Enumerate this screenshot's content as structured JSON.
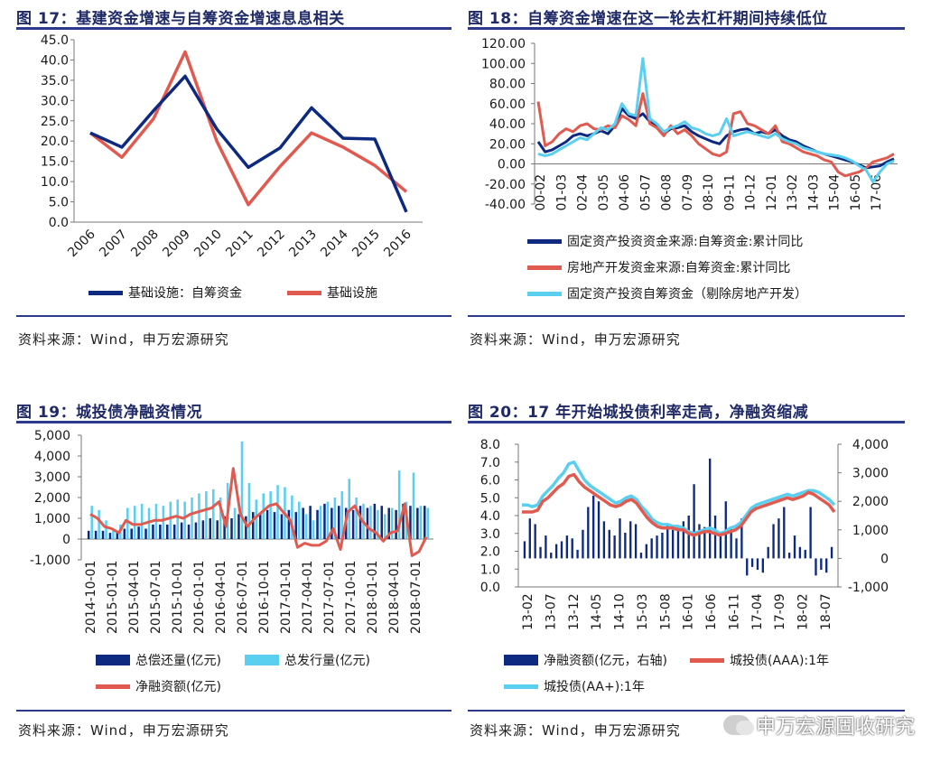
{
  "panels": {
    "p17": {
      "title": "图 17：基建资金增速与自筹资金增速息息相关",
      "source": "资料来源：Wind，申万宏源研究",
      "legend": [
        "基础设施：自筹资金",
        "基础设施"
      ]
    },
    "p18": {
      "title": "图 18：自筹资金增速在这一轮去杠杆期间持续低位",
      "source": "资料来源：Wind，申万宏源研究",
      "legend": [
        "固定资产投资资金来源:自筹资金:累计同比",
        "房地产开发资金来源:自筹资金:累计同比",
        "固定资产投资自筹资金（剔除房地产开发）"
      ]
    },
    "p19": {
      "title": "图 19：城投债净融资情况",
      "source": "资料来源：Wind，申万宏源研究",
      "legend": [
        "总偿还量(亿元)",
        "总发行量(亿元)",
        "净融资额(亿元)"
      ]
    },
    "p20": {
      "title": "图 20：17 年开始城投债利率走高，净融资缩减",
      "source": "资料来源：Wind，申万宏源研究",
      "legend": [
        "净融资额(亿元，右轴)",
        "城投债(AAA):1年",
        "城投债(AA+):1年"
      ]
    }
  },
  "watermark": "申万宏源固收研究",
  "colors": {
    "navy": "#0d2a80",
    "red": "#e05a50",
    "cyan": "#5bcff0",
    "rule": "#2b3a8c"
  },
  "chart_data": [
    {
      "id": "fig17",
      "type": "line",
      "title": "图 17：基建资金增速与自筹资金增速息息相关",
      "categories": [
        "2006",
        "2007",
        "2008",
        "2009",
        "2010",
        "2011",
        "2012",
        "2013",
        "2014",
        "2015",
        "2016"
      ],
      "ylim": [
        0,
        45
      ],
      "yticks": [
        "0.0",
        "5.0",
        "10.0",
        "15.0",
        "20.0",
        "25.0",
        "30.0",
        "35.0",
        "40.0",
        "45.0"
      ],
      "legend_position": "bottom",
      "series": [
        {
          "name": "基础设施：自筹资金",
          "color": "#0d2a80",
          "values": [
            22.0,
            18.5,
            27.5,
            36.0,
            23.0,
            13.5,
            18.3,
            28.2,
            20.7,
            20.5,
            2.5
          ]
        },
        {
          "name": "基础设施",
          "color": "#e05a50",
          "values": [
            22.0,
            16.0,
            25.5,
            42.0,
            20.0,
            4.3,
            13.7,
            22.0,
            18.5,
            14.0,
            7.5
          ]
        }
      ]
    },
    {
      "id": "fig18",
      "type": "line",
      "title": "图 18：自筹资金增速在这一轮去杠杆期间持续低位",
      "x_ticks": [
        "00-02",
        "01-03",
        "02-04",
        "03-05",
        "04-06",
        "05-07",
        "06-08",
        "07-09",
        "08-10",
        "09-11",
        "10-12",
        "12-01",
        "13-02",
        "14-03",
        "15-04",
        "16-05",
        "17-06"
      ],
      "ylim": [
        -40,
        120
      ],
      "yticks": [
        "-40.00",
        "-20.00",
        "0.00",
        "20.00",
        "40.00",
        "60.00",
        "80.00",
        "100.00",
        "120.00"
      ],
      "legend_position": "bottom",
      "series": [
        {
          "name": "固定资产投资资金来源:自筹资金:累计同比",
          "color": "#0d2a80",
          "values": [
            22,
            12,
            14,
            18,
            22,
            28,
            30,
            28,
            30,
            33,
            30,
            38,
            55,
            48,
            45,
            50,
            42,
            38,
            30,
            35,
            36,
            38,
            32,
            28,
            25,
            22,
            20,
            28,
            32,
            34,
            35,
            30,
            32,
            30,
            34,
            28,
            24,
            22,
            18,
            15,
            12,
            10,
            8,
            6,
            4,
            2,
            -1,
            -4,
            -3,
            -2,
            2,
            5
          ]
        },
        {
          "name": "房地产开发资金来源:自筹资金:累计同比",
          "color": "#e05a50",
          "values": [
            62,
            18,
            22,
            30,
            35,
            32,
            38,
            40,
            35,
            34,
            38,
            36,
            48,
            44,
            38,
            70,
            40,
            36,
            28,
            38,
            30,
            34,
            28,
            20,
            15,
            10,
            8,
            12,
            50,
            52,
            40,
            38,
            34,
            30,
            38,
            22,
            20,
            16,
            12,
            10,
            8,
            4,
            2,
            -8,
            -12,
            -10,
            -8,
            -4,
            2,
            4,
            6,
            10
          ]
        },
        {
          "name": "固定资产投资自筹资金（剔除房地产开发）",
          "color": "#5bcff0",
          "values": [
            10,
            8,
            10,
            14,
            18,
            22,
            26,
            24,
            30,
            36,
            34,
            40,
            60,
            50,
            48,
            105,
            45,
            40,
            32,
            36,
            38,
            42,
            36,
            34,
            30,
            28,
            30,
            45,
            28,
            30,
            32,
            30,
            28,
            26,
            30,
            25,
            22,
            20,
            16,
            14,
            12,
            10,
            9,
            8,
            6,
            3,
            -2,
            -6,
            -18,
            -8,
            0,
            3
          ]
        }
      ]
    },
    {
      "id": "fig19",
      "type": "bar",
      "title": "图 19：城投债净融资情况",
      "x_ticks": [
        "2014-10-01",
        "2015-01-01",
        "2015-04-01",
        "2015-07-01",
        "2015-10-01",
        "2016-01-01",
        "2016-04-01",
        "2016-07-01",
        "2016-10-01",
        "2017-01-01",
        "2017-04-01",
        "2017-07-01",
        "2017-10-01",
        "2018-01-01",
        "2018-04-01",
        "2018-07-01"
      ],
      "ylim": [
        -1000,
        5000
      ],
      "yticks": [
        "-1,000",
        "0",
        "1,000",
        "2,000",
        "3,000",
        "4,000",
        "5,000"
      ],
      "legend_position": "bottom",
      "series": [
        {
          "name": "总偿还量(亿元)",
          "color": "#0d2a80",
          "type": "bar",
          "values": [
            400,
            400,
            400,
            300,
            400,
            500,
            500,
            600,
            500,
            700,
            700,
            700,
            700,
            800,
            700,
            800,
            900,
            1000,
            900,
            1100,
            1000,
            1200,
            1100,
            1300,
            1200,
            1400,
            1300,
            1200,
            1400,
            1300,
            1500,
            1600,
            1400,
            1700,
            1500,
            1600,
            1500,
            1400,
            1600,
            1500,
            1700,
            1600,
            1500,
            1400,
            1700,
            1600,
            1500,
            1600
          ]
        },
        {
          "name": "总发行量(亿元)",
          "color": "#5bcff0",
          "type": "bar",
          "values": [
            1600,
            1400,
            900,
            500,
            700,
            1500,
            1600,
            1700,
            1500,
            1700,
            1600,
            1800,
            1900,
            1800,
            2000,
            2200,
            2300,
            2400,
            2000,
            2700,
            1500,
            4700,
            2700,
            1900,
            2200,
            2300,
            2600,
            2500,
            2100,
            1800,
            1200,
            900,
            1600,
            1800,
            2000,
            2300,
            2900,
            2000,
            1700,
            1600,
            1400,
            1200,
            1500,
            3300,
            1800,
            3200,
            1600,
            1500
          ]
        },
        {
          "name": "净融资额(亿元)",
          "color": "#e05a50",
          "type": "line",
          "values": [
            1200,
            1000,
            600,
            500,
            300,
            900,
            700,
            700,
            800,
            900,
            900,
            1000,
            1100,
            1000,
            1200,
            1300,
            1400,
            1500,
            1800,
            600,
            3400,
            1200,
            600,
            1000,
            1300,
            1600,
            1700,
            1300,
            900,
            -400,
            -200,
            -300,
            -300,
            -100,
            500,
            -500,
            1300,
            1600,
            900,
            500,
            300,
            -100,
            300,
            400,
            1700,
            -800,
            -600,
            100
          ]
        }
      ]
    },
    {
      "id": "fig20",
      "type": "bar",
      "title": "图 20：17 年开始城投债利率走高，净融资缩减",
      "x_ticks": [
        "13-02",
        "13-07",
        "13-12",
        "14-05",
        "14-10",
        "15-03",
        "15-08",
        "16-01",
        "16-06",
        "16-11",
        "17-04",
        "17-09",
        "18-02",
        "18-07"
      ],
      "ylim_left": [
        0,
        8
      ],
      "yticks_left": [
        "0.0",
        "1.0",
        "2.0",
        "3.0",
        "4.0",
        "5.0",
        "6.0",
        "7.0",
        "8.0"
      ],
      "ylim_right": [
        -1000,
        4000
      ],
      "yticks_right": [
        "-1,000",
        "0",
        "1,000",
        "2,000",
        "3,000",
        "4,000"
      ],
      "legend_position": "bottom",
      "series": [
        {
          "name": "净融资额(亿元，右轴)",
          "color": "#0d2a80",
          "type": "bar",
          "axis": "right",
          "values": [
            600,
            1400,
            1200,
            400,
            800,
            200,
            500,
            600,
            800,
            700,
            300,
            1000,
            1800,
            2200,
            2000,
            1300,
            1000,
            800,
            1400,
            900,
            1300,
            1200,
            200,
            500,
            700,
            800,
            900,
            1200,
            1000,
            1100,
            1300,
            1500,
            2600,
            1200,
            1100,
            3500,
            1500,
            900,
            2000,
            1100,
            700,
            1400,
            -600,
            -300,
            -400,
            -500,
            400,
            1200,
            1400,
            1800,
            200,
            800,
            400,
            300,
            1800,
            -600,
            -400,
            -500,
            400
          ]
        },
        {
          "name": "城投债(AAA):1年",
          "color": "#e05a50",
          "type": "line",
          "axis": "left",
          "values": [
            4.2,
            4.2,
            4.2,
            4.3,
            4.8,
            5.0,
            5.3,
            5.6,
            5.8,
            6.2,
            6.3,
            5.9,
            5.6,
            5.4,
            5.2,
            5.0,
            4.8,
            4.6,
            4.5,
            4.6,
            4.8,
            4.9,
            4.7,
            4.3,
            3.9,
            3.6,
            3.4,
            3.3,
            3.3,
            3.3,
            3.2,
            3.2,
            3.0,
            2.9,
            3.0,
            3.1,
            3.1,
            3.0,
            2.9,
            3.0,
            3.1,
            3.2,
            3.4,
            3.8,
            4.2,
            4.4,
            4.5,
            4.6,
            4.7,
            4.8,
            4.9,
            5.0,
            4.9,
            5.0,
            5.1,
            5.3,
            5.2,
            5.0,
            4.8,
            4.6,
            4.2
          ]
        },
        {
          "name": "城投债(AA+):1年",
          "color": "#5bcff0",
          "type": "line",
          "axis": "left",
          "values": [
            4.6,
            4.6,
            4.5,
            4.6,
            5.1,
            5.4,
            5.7,
            6.1,
            6.4,
            6.9,
            7.0,
            6.5,
            6.0,
            5.7,
            5.5,
            5.3,
            5.1,
            4.9,
            4.7,
            4.8,
            5.0,
            5.1,
            4.9,
            4.5,
            4.2,
            3.8,
            3.6,
            3.5,
            3.5,
            3.4,
            3.4,
            3.3,
            3.1,
            3.0,
            3.1,
            3.2,
            3.3,
            3.2,
            3.0,
            3.1,
            3.3,
            3.4,
            3.6,
            4.0,
            4.4,
            4.6,
            4.7,
            4.8,
            4.9,
            5.0,
            5.1,
            5.2,
            5.1,
            5.2,
            5.3,
            5.4,
            5.4,
            5.3,
            5.1,
            4.9,
            4.6
          ]
        }
      ]
    }
  ]
}
